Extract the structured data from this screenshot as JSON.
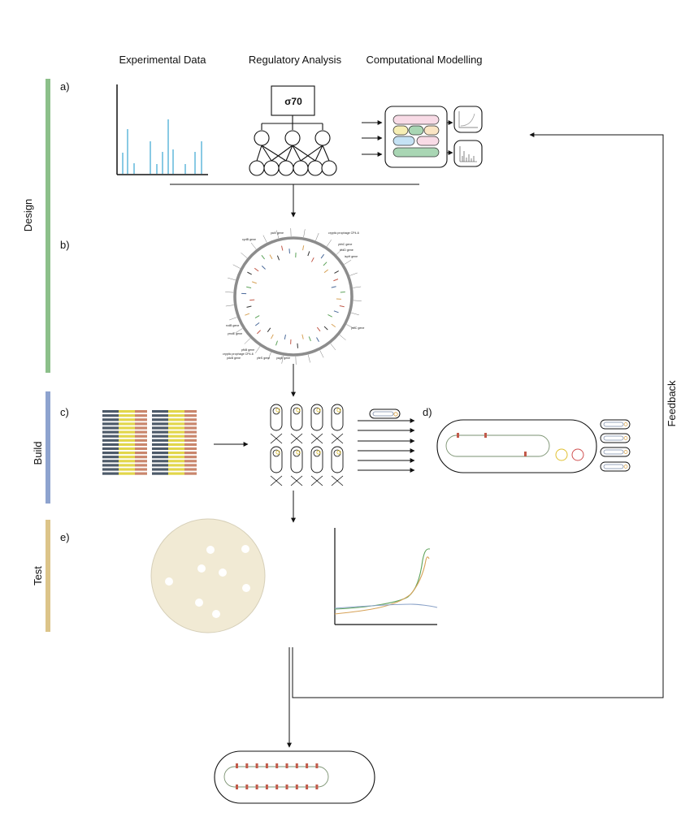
{
  "headers": {
    "experimental": "Experimental Data",
    "regulatory": "Regulatory Analysis",
    "computational": "Computational Modelling"
  },
  "phases": {
    "design": "Design",
    "build": "Build",
    "test": "Test"
  },
  "panel_labels": {
    "a": "a)",
    "b": "b)",
    "c": "c)",
    "d": "d)",
    "e": "e)"
  },
  "sigma_factor": "σ70",
  "feedback": "Feedback",
  "genome_annotations_top": [
    "yaiX gene",
    "cydB gene",
    "rcdB gene",
    "ymdE gene",
    "cryptic prophage CP4-6",
    "ybhC gene",
    "rhdD gene",
    "ispH gene",
    "ydfC gene"
  ],
  "genome_annotations_bottom": [
    "pfkB gene",
    "cryptic prophage CP4-6",
    "ydcB gene",
    "yfeS gene",
    "yagE gene"
  ],
  "colors": {
    "design_bar": "#8cc08a",
    "build_bar": "#8ea3cf",
    "test_bar": "#dcc489",
    "bar_chart": "#56b4d8",
    "plate": "#f1ead4",
    "curve_green": "#5ea35b",
    "curve_orange": "#d7a257",
    "curve_blue": "#8aa2c8"
  }
}
